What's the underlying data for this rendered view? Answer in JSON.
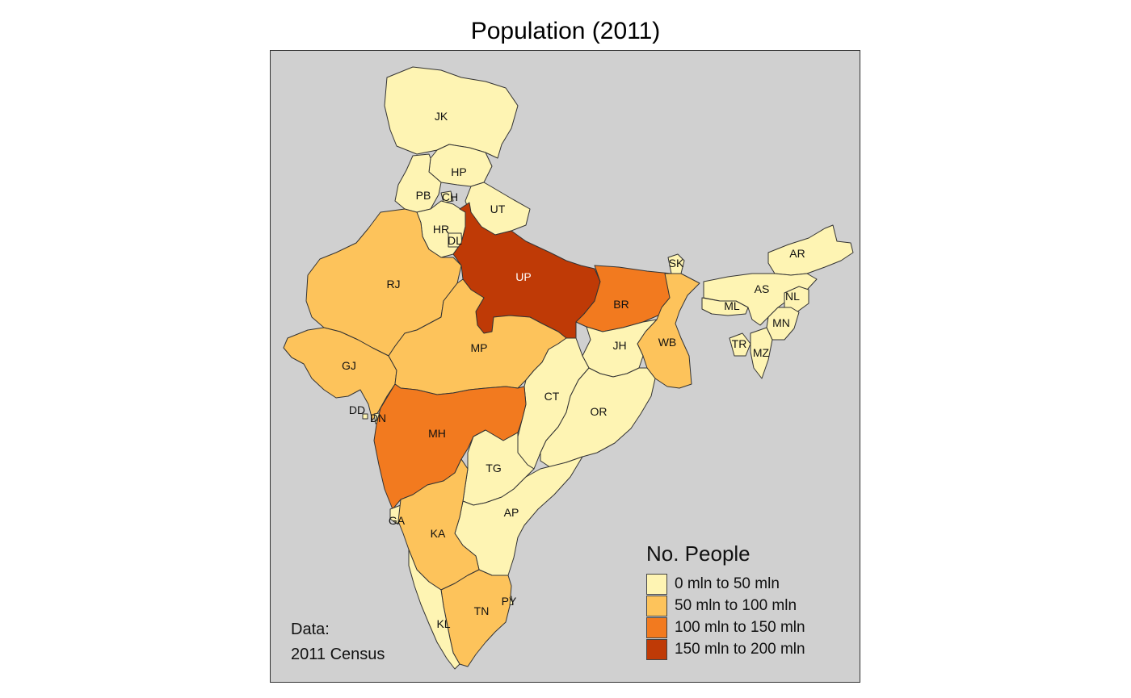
{
  "title": "Population (2011)",
  "legend": {
    "title": "No. People",
    "items": [
      {
        "label": "0 mln to 50 mln",
        "color": "#fef4b3"
      },
      {
        "label": "50 mln to 100 mln",
        "color": "#fdc35b"
      },
      {
        "label": "100 mln to 150 mln",
        "color": "#f27a1f"
      },
      {
        "label": "150 mln to 200 mln",
        "color": "#bf3a06"
      }
    ]
  },
  "credits": {
    "line1": "Data:",
    "line2": "2011 Census"
  },
  "background_color": "#d0d0d0",
  "states": [
    {
      "code": "JK",
      "class": 0
    },
    {
      "code": "HP",
      "class": 0
    },
    {
      "code": "PB",
      "class": 0
    },
    {
      "code": "CH",
      "class": 0
    },
    {
      "code": "UT",
      "class": 0
    },
    {
      "code": "HR",
      "class": 0
    },
    {
      "code": "DL",
      "class": 0
    },
    {
      "code": "RJ",
      "class": 1
    },
    {
      "code": "UP",
      "class": 3
    },
    {
      "code": "BR",
      "class": 2
    },
    {
      "code": "SK",
      "class": 0
    },
    {
      "code": "AR",
      "class": 0
    },
    {
      "code": "AS",
      "class": 0
    },
    {
      "code": "NL",
      "class": 0
    },
    {
      "code": "ML",
      "class": 0
    },
    {
      "code": "MN",
      "class": 0
    },
    {
      "code": "TR",
      "class": 0
    },
    {
      "code": "MZ",
      "class": 0
    },
    {
      "code": "WB",
      "class": 1
    },
    {
      "code": "JH",
      "class": 0
    },
    {
      "code": "GJ",
      "class": 1
    },
    {
      "code": "MP",
      "class": 1
    },
    {
      "code": "CT",
      "class": 0
    },
    {
      "code": "OR",
      "class": 0
    },
    {
      "code": "DD",
      "class": 0
    },
    {
      "code": "DN",
      "class": 0
    },
    {
      "code": "MH",
      "class": 2
    },
    {
      "code": "TG",
      "class": 0
    },
    {
      "code": "AP",
      "class": 0
    },
    {
      "code": "GA",
      "class": 0
    },
    {
      "code": "KA",
      "class": 1
    },
    {
      "code": "PY",
      "class": 0
    },
    {
      "code": "TN",
      "class": 1
    },
    {
      "code": "KL",
      "class": 0
    }
  ]
}
